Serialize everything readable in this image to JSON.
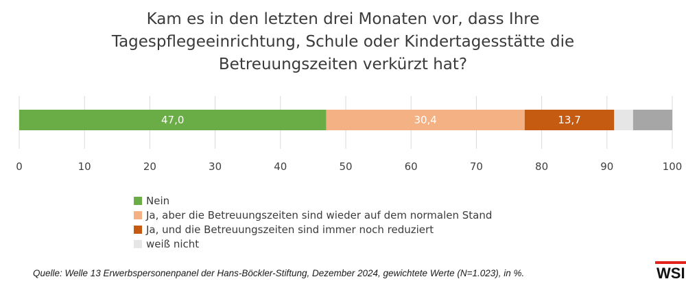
{
  "chart_data": {
    "type": "bar",
    "orientation": "horizontal-stacked",
    "title_lines": [
      "Kam es in den letzten drei Monaten vor, dass Ihre",
      "Tagespflegeeinrichtung, Schule oder Kindertagesstätte die",
      "Betreuungszeiten verkürzt hat?"
    ],
    "xlim": [
      0,
      100
    ],
    "xticks": [
      0,
      10,
      20,
      30,
      40,
      50,
      60,
      70,
      80,
      90,
      100
    ],
    "grid": true,
    "legend_position": "bottom",
    "series": [
      {
        "name": "Nein",
        "value": 47.0,
        "label": "47,0",
        "color": "#6aac46"
      },
      {
        "name": "Ja, aber die Betreuungszeiten sind wieder auf dem normalen Stand",
        "value": 30.4,
        "label": "30,4",
        "color": "#f4b183"
      },
      {
        "name": "Ja, und die Betreuungszeiten sind immer noch reduziert",
        "value": 13.7,
        "label": "13,7",
        "color": "#c55a11"
      },
      {
        "name": "weiß nicht",
        "value": 2.9,
        "label": "",
        "color": "#e7e6e6"
      },
      {
        "name": "",
        "value": 6.0,
        "label": "",
        "color": "#a6a6a6"
      }
    ]
  },
  "legend_items": [
    {
      "label": "Nein",
      "color": "#6aac46"
    },
    {
      "label": "Ja, aber die Betreuungszeiten sind wieder auf dem normalen Stand",
      "color": "#f4b183"
    },
    {
      "label": "Ja, und die Betreuungszeiten sind immer noch reduziert",
      "color": "#c55a11"
    },
    {
      "label": "weiß nicht",
      "color": "#e7e6e6"
    }
  ],
  "source": "Quelle: Welle 13 Erwerbspersonenpanel der Hans-Böckler-Stiftung, Dezember 2024, gewichtete Werte (N=1.023), in %.",
  "logo_text": "WSI"
}
